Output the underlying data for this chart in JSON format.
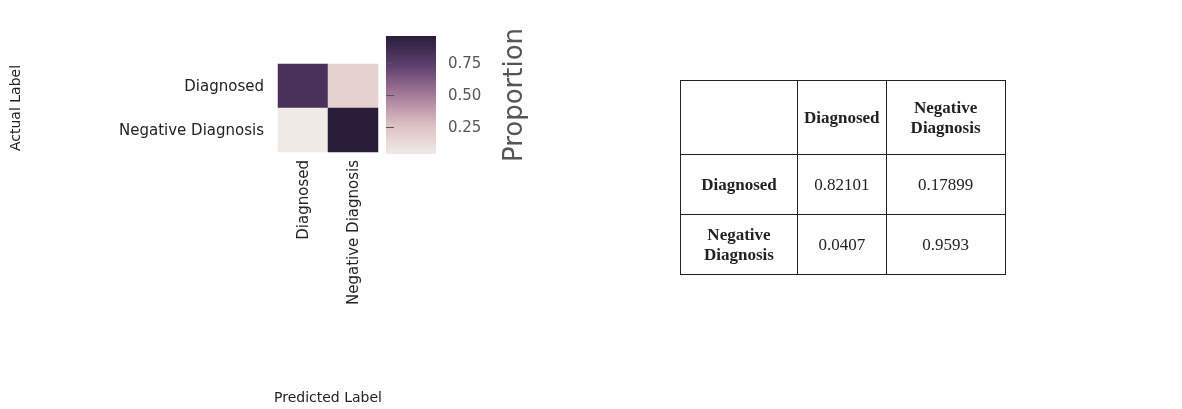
{
  "chart_data": [
    {
      "type": "heatmap",
      "xlabel": "Predicted Label",
      "ylabel": "Actual Label",
      "clabel": "Proportion",
      "categories": [
        "Diagnosed",
        "Negative Diagnosis"
      ],
      "y_categories": [
        "Diagnosed",
        "Negative Diagnosis"
      ],
      "cells": [
        [
          0.82101,
          0.17899
        ],
        [
          0.0407,
          0.9593
        ]
      ],
      "clim": [
        0.0407,
        0.9593
      ],
      "cticks": [
        {
          "value": 0.25,
          "label": "0.25"
        },
        {
          "value": 0.5,
          "label": "0.50"
        },
        {
          "value": 0.75,
          "label": "0.75"
        }
      ]
    },
    {
      "type": "other",
      "categories": [
        "Diagnosed",
        "Negative Diagnosis"
      ],
      "y_categories": [
        "Diagnosed",
        "Negative Diagnosis"
      ],
      "cell_labels": [
        [
          "0.82101",
          "0.17899"
        ],
        [
          "0.0407",
          "0.9593"
        ]
      ]
    }
  ]
}
